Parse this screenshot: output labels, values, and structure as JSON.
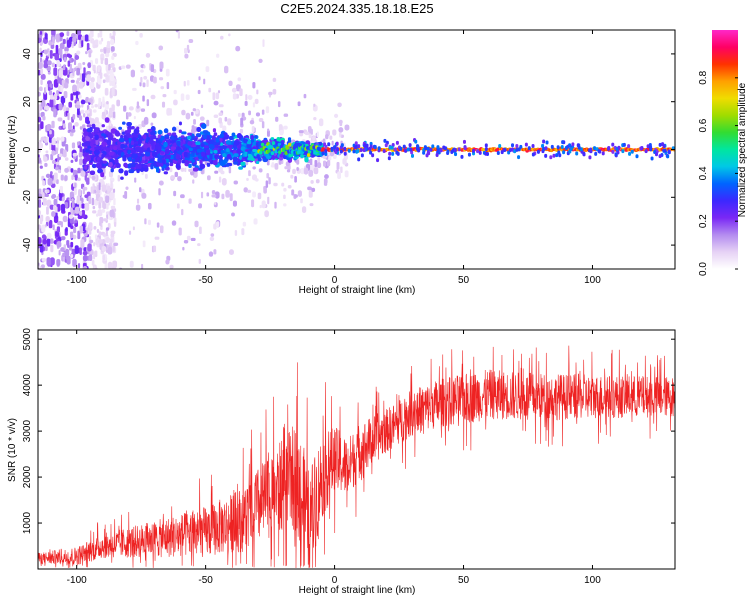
{
  "figure": {
    "title": "C2E5.2024.335.18.18.E25"
  },
  "chart_data": [
    {
      "type": "heatmap",
      "xlabel": "Height of straight line (km)",
      "ylabel": "Frequency (Hz)",
      "xlim": [
        -115,
        132
      ],
      "ylim": [
        -50,
        50
      ],
      "xticks": [
        -100,
        -50,
        0,
        50,
        100
      ],
      "yticks": [
        -40,
        -20,
        0,
        20,
        40
      ],
      "colorbar": {
        "label": "Normalized spectral amplitude",
        "range": [
          0,
          1
        ],
        "ticks": [
          "0.0",
          "0.2",
          "0.4",
          "0.6",
          "0.8"
        ],
        "colors": [
          "#ffffff",
          "#e6d2f5",
          "#b48cf0",
          "#7a28f5",
          "#3c28ff",
          "#0064ff",
          "#00c8e6",
          "#00e6a0",
          "#32dc32",
          "#a0dc00",
          "#f0dc00",
          "#ffa000",
          "#ff3200",
          "#ff0064",
          "#ff28c8"
        ]
      },
      "features": {
        "center_line_hz": 0,
        "line_peak_start_km": -5,
        "broadband_noise_below_km": -95,
        "spread_hz": [
          {
            "x": -90,
            "half_width": 5
          },
          {
            "x": -50,
            "half_width": 4
          },
          {
            "x": -20,
            "half_width": 2
          },
          {
            "x": 0,
            "half_width": 1
          },
          {
            "x": 130,
            "half_width": 1
          }
        ]
      }
    },
    {
      "type": "line",
      "xlabel": "Height of straight line (km)",
      "ylabel": "SNR (10 * v/v)",
      "xlim": [
        -115,
        132
      ],
      "ylim": [
        0,
        5200
      ],
      "xticks": [
        -100,
        -50,
        0,
        50,
        100
      ],
      "yticks": [
        1000,
        2000,
        3000,
        4000,
        5000
      ],
      "color": "#ee2222",
      "trend": [
        {
          "x": -115,
          "y": 230
        },
        {
          "x": -100,
          "y": 280
        },
        {
          "x": -90,
          "y": 500
        },
        {
          "x": -70,
          "y": 650
        },
        {
          "x": -50,
          "y": 800
        },
        {
          "x": -35,
          "y": 1100
        },
        {
          "x": -25,
          "y": 1600
        },
        {
          "x": -15,
          "y": 2000
        },
        {
          "x": -10,
          "y": 1000
        },
        {
          "x": -5,
          "y": 2000
        },
        {
          "x": 0,
          "y": 2400
        },
        {
          "x": 5,
          "y": 2200
        },
        {
          "x": 10,
          "y": 2600
        },
        {
          "x": 20,
          "y": 3000
        },
        {
          "x": 30,
          "y": 3400
        },
        {
          "x": 40,
          "y": 3600
        },
        {
          "x": 50,
          "y": 3700
        },
        {
          "x": 60,
          "y": 3800
        },
        {
          "x": 75,
          "y": 3750
        },
        {
          "x": 100,
          "y": 3750
        },
        {
          "x": 132,
          "y": 3750
        }
      ],
      "noise_amplitude": [
        {
          "x": -115,
          "y": 150
        },
        {
          "x": -95,
          "y": 300
        },
        {
          "x": -70,
          "y": 500
        },
        {
          "x": -40,
          "y": 800
        },
        {
          "x": -20,
          "y": 1300
        },
        {
          "x": -12,
          "y": 1600
        },
        {
          "x": 0,
          "y": 900
        },
        {
          "x": 20,
          "y": 600
        },
        {
          "x": 50,
          "y": 700
        },
        {
          "x": 132,
          "y": 550
        }
      ],
      "peak_max": 5200
    }
  ]
}
